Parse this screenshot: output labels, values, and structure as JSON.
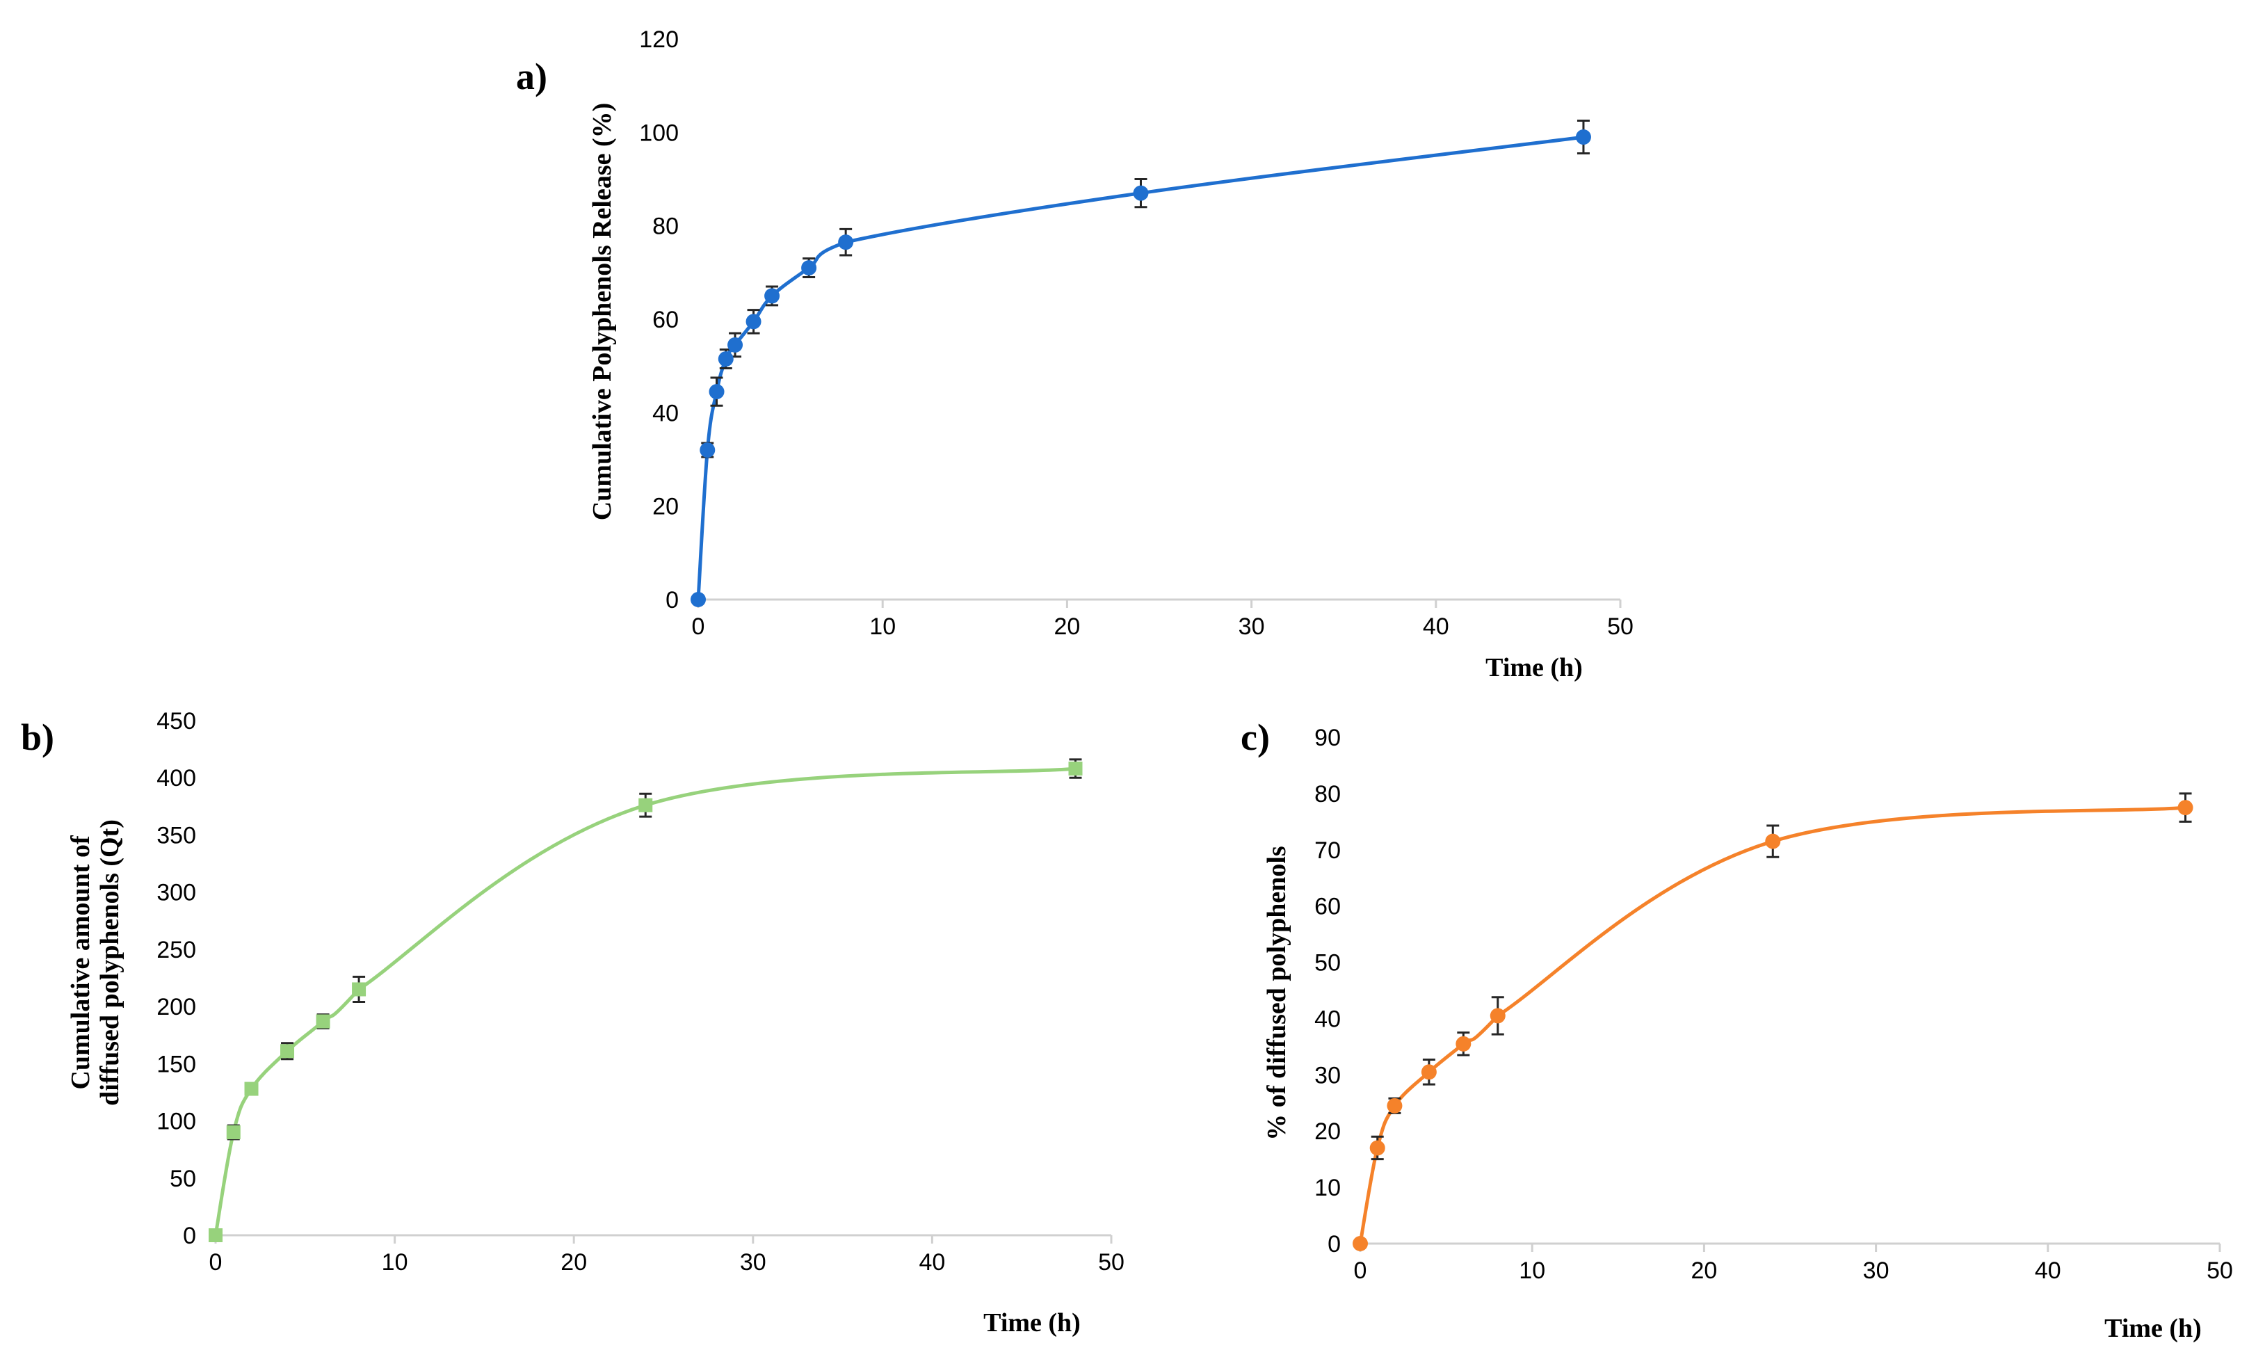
{
  "chart_data": [
    {
      "type": "line",
      "panel_label": "a)",
      "title": "",
      "xlabel": "Time (h)",
      "ylabel": "Cumulative Polyphenols Release (%)",
      "xlim": [
        0,
        50
      ],
      "ylim": [
        0,
        120
      ],
      "x_ticks": [
        0,
        10,
        20,
        30,
        40,
        50
      ],
      "y_ticks": [
        0,
        20,
        40,
        60,
        80,
        100,
        120
      ],
      "grid": false,
      "legend": "none",
      "series": [
        {
          "name": "Cumulative release",
          "color": "#1f6fcf",
          "marker": "circle",
          "x": [
            0,
            0.5,
            1,
            1.5,
            2,
            3,
            4,
            6,
            8,
            24,
            48
          ],
          "values": [
            0,
            32,
            44.5,
            51.5,
            54.5,
            59.5,
            65,
            71,
            76.5,
            87,
            99
          ],
          "errors": [
            0,
            1.5,
            3,
            2,
            2.5,
            2.5,
            2,
            2,
            2.8,
            3,
            3.5
          ]
        }
      ]
    },
    {
      "type": "line",
      "panel_label": "b)",
      "title": "",
      "xlabel": "Time (h)",
      "ylabel_lines": [
        "Cumulative amount of",
        "diffused polyphenols (Qt)"
      ],
      "xlim": [
        0,
        50
      ],
      "ylim": [
        0,
        450
      ],
      "x_ticks": [
        0,
        10,
        20,
        30,
        40,
        50
      ],
      "y_ticks": [
        0,
        50,
        100,
        150,
        200,
        250,
        300,
        350,
        400,
        450
      ],
      "grid": false,
      "legend": "none",
      "series": [
        {
          "name": "Qt",
          "color": "#97d27c",
          "marker": "square",
          "x": [
            0,
            1,
            2,
            4,
            6,
            8,
            24,
            48
          ],
          "values": [
            0,
            90,
            128,
            161,
            187,
            215,
            376,
            408
          ],
          "errors": [
            0,
            6,
            3,
            7,
            6,
            11,
            10,
            8
          ]
        }
      ]
    },
    {
      "type": "line",
      "panel_label": "c)",
      "title": "",
      "xlabel": "Time (h)",
      "ylabel": "% of diffused polyphenols",
      "xlim": [
        0,
        50
      ],
      "ylim": [
        0,
        90
      ],
      "x_ticks": [
        0,
        10,
        20,
        30,
        40,
        50
      ],
      "y_ticks": [
        0,
        10,
        20,
        30,
        40,
        50,
        60,
        70,
        80,
        90
      ],
      "grid": false,
      "legend": "none",
      "series": [
        {
          "name": "% diffused",
          "color": "#f5822a",
          "marker": "circle",
          "x": [
            0,
            1,
            2,
            4,
            6,
            8,
            24,
            48
          ],
          "values": [
            0,
            17,
            24.5,
            30.5,
            35.5,
            40.5,
            71.5,
            77.5
          ],
          "errors": [
            0,
            2,
            1.3,
            2.2,
            2,
            3.3,
            2.8,
            2.5
          ]
        }
      ]
    }
  ]
}
